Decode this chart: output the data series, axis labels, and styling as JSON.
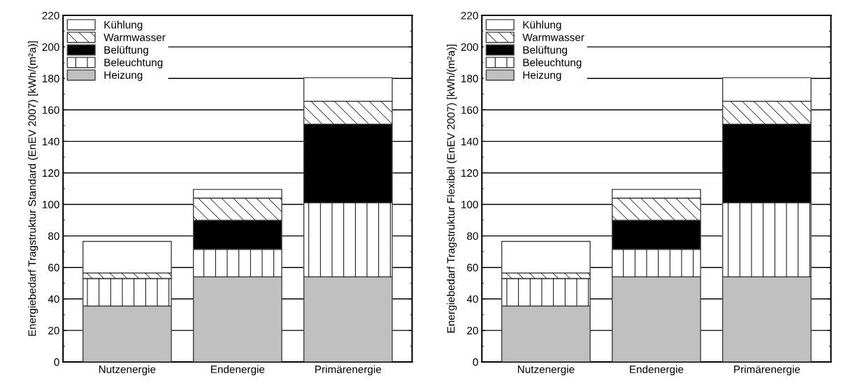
{
  "chart_data": [
    {
      "type": "bar",
      "stacked": true,
      "ylabel": "Energiebedarf Tragstruktur Standard (EnEV 2007) [kWh/(m²a)]",
      "categories": [
        "Nutzenergie",
        "Endenergie",
        "Primärenergie"
      ],
      "series": [
        {
          "name": "Heizung",
          "color": "#c0c0c0",
          "values": [
            35.5,
            54,
            54
          ]
        },
        {
          "name": "Beleuchtung",
          "color": "#ffffff",
          "values": [
            17.5,
            17.5,
            47
          ]
        },
        {
          "name": "Belüftung",
          "color": "#000000",
          "values": [
            0,
            18.5,
            50
          ]
        },
        {
          "name": "Warmwasser",
          "color": "#ffffff",
          "values": [
            3.5,
            14,
            14.5
          ]
        },
        {
          "name": "Kühlung",
          "color": "#ffffff",
          "values": [
            20,
            5.5,
            15
          ]
        }
      ],
      "ylim": [
        0,
        220
      ],
      "yticks": [
        0,
        20,
        40,
        60,
        80,
        100,
        120,
        140,
        160,
        180,
        200,
        220
      ],
      "grid": "y",
      "legend": "top left"
    },
    {
      "type": "bar",
      "stacked": true,
      "ylabel": "Energiebedarf Tragstruktur Flexibel (EnEV 2007) [kWh/(m²a)]",
      "categories": [
        "Nutzenergie",
        "Endenergie",
        "Primärenergie"
      ],
      "series": [
        {
          "name": "Heizung",
          "color": "#c0c0c0",
          "values": [
            35.5,
            54,
            54
          ]
        },
        {
          "name": "Beleuchtung",
          "color": "#ffffff",
          "values": [
            17.5,
            17.5,
            47
          ]
        },
        {
          "name": "Belüftung",
          "color": "#000000",
          "values": [
            0,
            18.5,
            50
          ]
        },
        {
          "name": "Warmwasser",
          "color": "#ffffff",
          "values": [
            3.5,
            14,
            14.5
          ]
        },
        {
          "name": "Kühlung",
          "color": "#ffffff",
          "values": [
            20,
            5.5,
            15
          ]
        }
      ],
      "ylim": [
        0,
        220
      ],
      "yticks": [
        0,
        20,
        40,
        60,
        80,
        100,
        120,
        140,
        160,
        180,
        200,
        220
      ],
      "grid": "y",
      "legend": "top left"
    }
  ]
}
